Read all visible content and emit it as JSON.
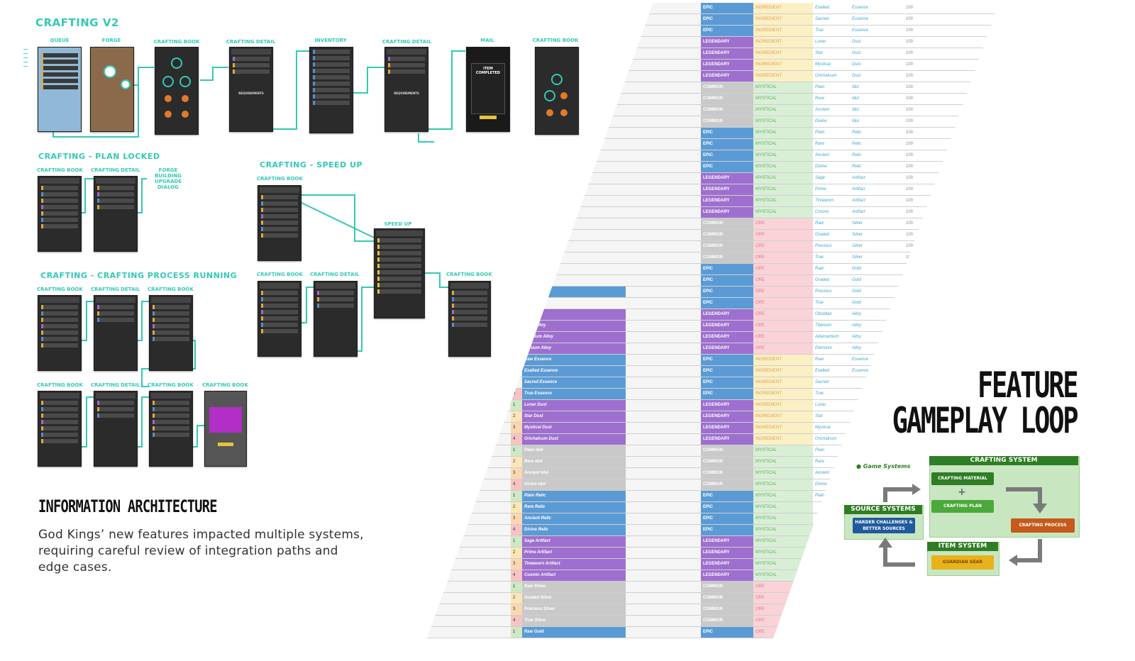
{
  "crafting_v2": {
    "title": "CRAFTING V2",
    "screens": [
      "QUEUE",
      "FORGE",
      "CRAFTING BOOK",
      "CRAFTING DETAIL",
      "INVENTORY",
      "CRAFTING DETAIL",
      "MAIL",
      "CRAFTING BOOK"
    ],
    "mail_text": "ITEM COMPLETED",
    "requirements_label": "REQUIREMENTS"
  },
  "plan_locked": {
    "title": "CRAFTING - PLAN LOCKED",
    "screens": [
      "CRAFTING BOOK",
      "CRAFTING DETAIL"
    ],
    "note": "FORGE BUILDING UPGRADE DIALOG"
  },
  "speed_up": {
    "title": "CRAFTING - SPEED UP",
    "screens": [
      "CRAFTING BOOK",
      "SPEED UP",
      "CRAFTING BOOK",
      "CRAFTING DETAIL",
      "CRAFTING BOOK"
    ]
  },
  "process_running": {
    "title": "CRAFTING - CRAFTING PROCESS RUNNING",
    "row1": [
      "CRAFTING BOOK",
      "CRAFTING DETAIL",
      "CRAFTING BOOK"
    ],
    "row2": [
      "CRAFTING BOOK",
      "CRAFTING DETAIL",
      "CRAFTING BOOK",
      "CRAFTING BOOK"
    ]
  },
  "info_arch": {
    "title": "INFORMATION ARCHITECTURE",
    "body": "God Kings’ new features impacted multiple systems, requiring careful review of integration paths and edge cases."
  },
  "feature": {
    "title_line1": "FEATURE",
    "title_line2": "GAMEPLAY LOOP",
    "game_systems": "Game Systems",
    "crafting_system": "CRAFTING SYSTEM",
    "crafting_material": "CRAFTING MATERIAL",
    "plus": "+",
    "crafting_plan": "CRAFTING PLAN",
    "crafting_process": "CRAFTING PROCESS",
    "source_systems": "SOURCE SYSTEMS",
    "harder_challenges": "HARDER CHALLENGES & BETTER SOURCES",
    "item_system": "ITEM SYSTEM",
    "guardian_gear": "GUARDIAN GEAR"
  },
  "colors": {
    "accent": "#33c9b5",
    "epic": "#5b9bd5",
    "legendary": "#9e6fcf",
    "common": "#c9c9c9",
    "ingredient": "#fbefc4",
    "mystical": "#d8efd6",
    "ore": "#f9d3d8"
  },
  "sheet_rows": [
    {
      "num": "",
      "name": "",
      "rar": "EPIC",
      "type": "INGREDIENT",
      "sub": "Exalted",
      "kind": "Essence",
      "qty": "100"
    },
    {
      "num": "",
      "name": "",
      "rar": "EPIC",
      "type": "INGREDIENT",
      "sub": "Sacred",
      "kind": "Essence",
      "qty": "100"
    },
    {
      "num": "",
      "name": "",
      "rar": "EPIC",
      "type": "INGREDIENT",
      "sub": "True",
      "kind": "Essence",
      "qty": "100"
    },
    {
      "num": "",
      "name": "",
      "rar": "LEGENDARY",
      "type": "INGREDIENT",
      "sub": "Lunar",
      "kind": "Dust",
      "qty": "100"
    },
    {
      "num": "",
      "name": "",
      "rar": "LEGENDARY",
      "type": "INGREDIENT",
      "sub": "Star",
      "kind": "Dust",
      "qty": "100"
    },
    {
      "num": "",
      "name": "",
      "rar": "LEGENDARY",
      "type": "INGREDIENT",
      "sub": "Mystical",
      "kind": "Dust",
      "qty": "100"
    },
    {
      "num": "",
      "name": "",
      "rar": "LEGENDARY",
      "type": "INGREDIENT",
      "sub": "Orichalcum",
      "kind": "Dust",
      "qty": "100"
    },
    {
      "num": "",
      "name": "",
      "rar": "COMMON",
      "type": "MYSTICAL",
      "sub": "Plain",
      "kind": "Idol",
      "qty": "100"
    },
    {
      "num": "",
      "name": "",
      "rar": "COMMON",
      "type": "MYSTICAL",
      "sub": "Rare",
      "kind": "Idol",
      "qty": "100"
    },
    {
      "num": "",
      "name": "",
      "rar": "COMMON",
      "type": "MYSTICAL",
      "sub": "Ancient",
      "kind": "Idol",
      "qty": "100"
    },
    {
      "num": "",
      "name": "",
      "rar": "COMMON",
      "type": "MYSTICAL",
      "sub": "Divine",
      "kind": "Idol",
      "qty": "100"
    },
    {
      "num": "",
      "name": "",
      "rar": "EPIC",
      "type": "MYSTICAL",
      "sub": "Plain",
      "kind": "Relic",
      "qty": "100"
    },
    {
      "num": "",
      "name": "",
      "rar": "EPIC",
      "type": "MYSTICAL",
      "sub": "Rare",
      "kind": "Relic",
      "qty": "100"
    },
    {
      "num": "",
      "name": "",
      "rar": "EPIC",
      "type": "MYSTICAL",
      "sub": "Ancient",
      "kind": "Relic",
      "qty": "100"
    },
    {
      "num": "",
      "name": "",
      "rar": "EPIC",
      "type": "MYSTICAL",
      "sub": "Divine",
      "kind": "Relic",
      "qty": "100"
    },
    {
      "num": "",
      "name": "",
      "rar": "LEGENDARY",
      "type": "MYSTICAL",
      "sub": "Sage",
      "kind": "Artifact",
      "qty": "100"
    },
    {
      "num": "",
      "name": "",
      "rar": "LEGENDARY",
      "type": "MYSTICAL",
      "sub": "Prime",
      "kind": "Artifact",
      "qty": "100"
    },
    {
      "num": "",
      "name": "",
      "rar": "LEGENDARY",
      "type": "MYSTICAL",
      "sub": "Timeworn",
      "kind": "Artifact",
      "qty": "100"
    },
    {
      "num": "",
      "name": "",
      "rar": "LEGENDARY",
      "type": "MYSTICAL",
      "sub": "Cosmic",
      "kind": "Artifact",
      "qty": "100"
    },
    {
      "num": "",
      "name": "",
      "rar": "COMMON",
      "type": "ORE",
      "sub": "Raw",
      "kind": "Silver",
      "qty": "100"
    },
    {
      "num": "",
      "name": "",
      "rar": "COMMON",
      "type": "ORE",
      "sub": "Graded",
      "kind": "Silver",
      "qty": "100"
    },
    {
      "num": "",
      "name": "",
      "rar": "COMMON",
      "type": "ORE",
      "sub": "Precious",
      "kind": "Silver",
      "qty": "100"
    },
    {
      "num": "",
      "name": "",
      "rar": "COMMON",
      "type": "ORE",
      "sub": "True",
      "kind": "Silver",
      "qty": "100"
    },
    {
      "num": "",
      "name": "",
      "rar": "EPIC",
      "type": "ORE",
      "sub": "Raw",
      "kind": "Gold",
      "qty": "100"
    },
    {
      "num": "",
      "name": "",
      "rar": "EPIC",
      "type": "ORE",
      "sub": "Graded",
      "kind": "Gold",
      "qty": "100"
    },
    {
      "num": "",
      "name": "old",
      "rar": "EPIC",
      "type": "ORE",
      "sub": "Precious",
      "kind": "Gold",
      "qty": "100"
    },
    {
      "num": "",
      "name": "",
      "rar": "EPIC",
      "type": "ORE",
      "sub": "True",
      "kind": "Gold",
      "qty": "100"
    },
    {
      "num": "",
      "name": "ian Alloy",
      "rar": "LEGENDARY",
      "type": "ORE",
      "sub": "Obsidian",
      "kind": "Alloy",
      "qty": "100"
    },
    {
      "num": "",
      "name": "nium Alloy",
      "rar": "LEGENDARY",
      "type": "ORE",
      "sub": "Titanium",
      "kind": "Alloy",
      "qty": "100"
    },
    {
      "num": "",
      "name": "mantium Alloy",
      "rar": "LEGENDARY",
      "type": "ORE",
      "sub": "Adamantium",
      "kind": "Alloy",
      "qty": "100"
    },
    {
      "num": "",
      "name": "ternium Alloy",
      "rar": "LEGENDARY",
      "type": "ORE",
      "sub": "Eternium",
      "kind": "Alloy",
      "qty": "100"
    },
    {
      "num": "",
      "name": "Raw Essence",
      "rar": "EPIC",
      "type": "INGREDIENT",
      "sub": "Raw",
      "kind": "Essence",
      "qty": ""
    },
    {
      "num": "",
      "name": "Exalted Essence",
      "rar": "EPIC",
      "type": "INGREDIENT",
      "sub": "Exalted",
      "kind": "Essence",
      "qty": ""
    },
    {
      "num": "",
      "name": "Sacred Essence",
      "rar": "EPIC",
      "type": "INGREDIENT",
      "sub": "Sacred",
      "kind": "",
      "qty": ""
    },
    {
      "num": "4",
      "name": "True Essence",
      "rar": "EPIC",
      "type": "INGREDIENT",
      "sub": "True",
      "kind": "",
      "qty": ""
    },
    {
      "num": "1",
      "name": "Lunar Dust",
      "rar": "LEGENDARY",
      "type": "INGREDIENT",
      "sub": "Lunar",
      "kind": "",
      "qty": ""
    },
    {
      "num": "2",
      "name": "Star Dust",
      "rar": "LEGENDARY",
      "type": "INGREDIENT",
      "sub": "Star",
      "kind": "",
      "qty": ""
    },
    {
      "num": "3",
      "name": "Mystical Dust",
      "rar": "LEGENDARY",
      "type": "INGREDIENT",
      "sub": "Mystical",
      "kind": "",
      "qty": ""
    },
    {
      "num": "4",
      "name": "Orichalcum Dust",
      "rar": "LEGENDARY",
      "type": "INGREDIENT",
      "sub": "Orichalcum",
      "kind": "",
      "qty": ""
    },
    {
      "num": "1",
      "name": "Plain Idol",
      "rar": "COMMON",
      "type": "MYSTICAL",
      "sub": "Plain",
      "kind": "",
      "qty": ""
    },
    {
      "num": "2",
      "name": "Rare Idol",
      "rar": "COMMON",
      "type": "MYSTICAL",
      "sub": "Rare",
      "kind": "",
      "qty": ""
    },
    {
      "num": "3",
      "name": "Ancient Idol",
      "rar": "COMMON",
      "type": "MYSTICAL",
      "sub": "Ancient",
      "kind": "",
      "qty": ""
    },
    {
      "num": "4",
      "name": "Divine Idol",
      "rar": "COMMON",
      "type": "MYSTICAL",
      "sub": "Divine",
      "kind": "",
      "qty": ""
    },
    {
      "num": "1",
      "name": "Plain Relic",
      "rar": "EPIC",
      "type": "MYSTICAL",
      "sub": "Plain",
      "kind": "",
      "qty": ""
    },
    {
      "num": "2",
      "name": "Rare Relic",
      "rar": "EPIC",
      "type": "MYSTICAL",
      "sub": "",
      "kind": "",
      "qty": ""
    },
    {
      "num": "3",
      "name": "Ancient Relic",
      "rar": "EPIC",
      "type": "MYSTICAL",
      "sub": "",
      "kind": "",
      "qty": ""
    },
    {
      "num": "4",
      "name": "Divine Relic",
      "rar": "EPIC",
      "type": "MYSTICAL",
      "sub": "",
      "kind": "",
      "qty": ""
    },
    {
      "num": "1",
      "name": "Sage Artifact",
      "rar": "LEGENDARY",
      "type": "MYSTICAL",
      "sub": "",
      "kind": "",
      "qty": ""
    },
    {
      "num": "2",
      "name": "Prime Artifact",
      "rar": "LEGENDARY",
      "type": "MYSTICAL",
      "sub": "",
      "kind": "",
      "qty": ""
    },
    {
      "num": "3",
      "name": "Timeworn Artifact",
      "rar": "LEGENDARY",
      "type": "MYSTICAL",
      "sub": "",
      "kind": "",
      "qty": ""
    },
    {
      "num": "4",
      "name": "Cosmic Artifact",
      "rar": "LEGENDARY",
      "type": "MYSTICAL",
      "sub": "",
      "kind": "",
      "qty": ""
    },
    {
      "num": "1",
      "name": "Raw Silver",
      "rar": "COMMON",
      "type": "ORE",
      "sub": "",
      "kind": "",
      "qty": ""
    },
    {
      "num": "2",
      "name": "Graded Silver",
      "rar": "COMMON",
      "type": "ORE",
      "sub": "",
      "kind": "",
      "qty": ""
    },
    {
      "num": "3",
      "name": "Precious Silver",
      "rar": "COMMON",
      "type": "ORE",
      "sub": "",
      "kind": "",
      "qty": ""
    },
    {
      "num": "4",
      "name": "True Silver",
      "rar": "COMMON",
      "type": "ORE",
      "sub": "",
      "kind": "",
      "qty": ""
    },
    {
      "num": "1",
      "name": "Raw Gold",
      "rar": "EPIC",
      "type": "ORE",
      "sub": "",
      "kind": "",
      "qty": ""
    },
    {
      "num": "2",
      "name": "Graded Gold",
      "rar": "EPIC",
      "type": "ORE",
      "sub": "",
      "kind": "",
      "qty": ""
    },
    {
      "num": "3",
      "name": "Precious Gold",
      "rar": "EPIC",
      "type": "ORE",
      "sub": "",
      "kind": "",
      "qty": ""
    }
  ]
}
